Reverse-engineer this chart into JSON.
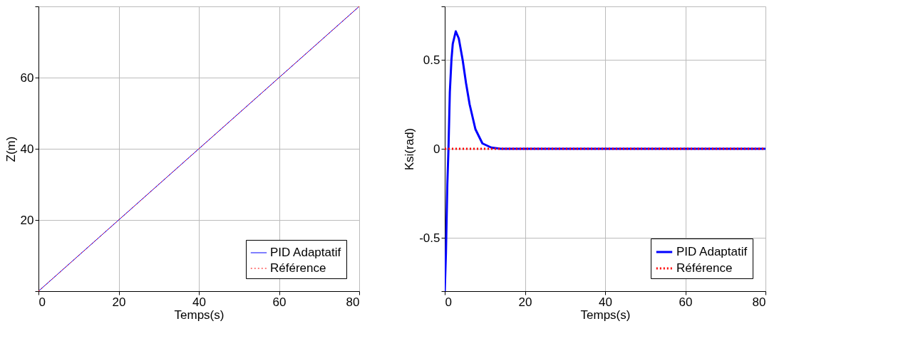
{
  "chart_data": [
    {
      "type": "line",
      "xlabel": "Temps(s)",
      "ylabel": "Z(m)",
      "xlim": [
        0,
        80
      ],
      "ylim": [
        0,
        80
      ],
      "xticks": [
        0,
        20,
        40,
        60,
        80
      ],
      "yticks": [
        {
          "value": 0,
          "label": null
        },
        20,
        40,
        60,
        {
          "value": 80,
          "label": null
        }
      ],
      "grid": true,
      "legend": "bottom right",
      "marker": "none",
      "series": [
        {
          "name": "PID Adaptatif",
          "color": "#0000ff",
          "line_style": "solid",
          "x": [
            0,
            80
          ],
          "values": [
            0,
            80
          ]
        },
        {
          "name": "Référence",
          "color": "#ff0000",
          "line_style": "dotted",
          "x": [
            0,
            80
          ],
          "values": [
            0,
            80
          ]
        }
      ]
    },
    {
      "type": "line",
      "xlabel": "Temps(s)",
      "ylabel": "Ksi(rad)",
      "xlim": [
        0,
        80
      ],
      "ylim": [
        -0.8,
        0.8
      ],
      "xticks": [
        0,
        20,
        40,
        60,
        80
      ],
      "yticks": [
        {
          "value": -0.8,
          "label": null
        },
        -0.5,
        0,
        0.5,
        {
          "value": 0.8,
          "label": null
        }
      ],
      "grid": true,
      "legend": "bottom right",
      "marker": "none",
      "series": [
        {
          "name": "PID Adaptatif",
          "color": "#0000ff",
          "line_style": "solid",
          "x": [
            0,
            0.29,
            0.64,
            0.93,
            1.27,
            1.67,
            2.0,
            2.75,
            3.5,
            4.46,
            5.3,
            6.2,
            7.65,
            9.4,
            11.6,
            14,
            20,
            40,
            60,
            80
          ],
          "values": [
            -0.8,
            -0.59,
            -0.2,
            0,
            0.32,
            0.5,
            0.59,
            0.66,
            0.62,
            0.5,
            0.37,
            0.25,
            0.11,
            0.03,
            0.007,
            0,
            0,
            0,
            0,
            0
          ]
        },
        {
          "name": "Référence",
          "color": "#ff0000",
          "line_style": "dotted",
          "x": [
            0,
            80
          ],
          "values": [
            0,
            0
          ]
        }
      ]
    }
  ]
}
